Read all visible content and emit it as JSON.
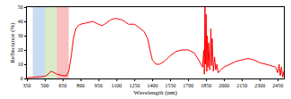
{
  "chart_data": {
    "type": "line",
    "xlabel": "Wavelength (nm)",
    "ylabel": "Reflectance (%)",
    "color": "#ff0000",
    "grid": false,
    "xlim": [
      350,
      2500
    ],
    "xticks": [
      350,
      500,
      650,
      800,
      950,
      1100,
      1250,
      1400,
      1550,
      1700,
      1850,
      2000,
      2150,
      2300,
      2450
    ],
    "ylim": [
      0,
      50
    ],
    "yticks": [
      0,
      10,
      20,
      30,
      40,
      50
    ],
    "bands": [
      {
        "range": [
          400,
          500
        ],
        "color": "#9fbfe8"
      },
      {
        "range": [
          500,
          600
        ],
        "color": "#b9d898"
      },
      {
        "range": [
          600,
          700
        ],
        "color": "#f08a8a"
      }
    ],
    "x": [
      350,
      400,
      450,
      500,
      530,
      550,
      570,
      600,
      650,
      680,
      700,
      720,
      740,
      760,
      780,
      800,
      850,
      900,
      950,
      980,
      1000,
      1050,
      1080,
      1100,
      1150,
      1200,
      1250,
      1270,
      1300,
      1330,
      1360,
      1380,
      1400,
      1430,
      1460,
      1500,
      1550,
      1600,
      1650,
      1700,
      1750,
      1780,
      1800,
      1820,
      1830,
      1835,
      1840,
      1845,
      1850,
      1855,
      1860,
      1865,
      1870,
      1880,
      1890,
      1895,
      1900,
      1910,
      1920,
      1930,
      1940,
      1950,
      1970,
      2000,
      2050,
      2100,
      2150,
      2200,
      2250,
      2300,
      2350,
      2400,
      2430,
      2450,
      2460,
      2470,
      2480,
      2490,
      2500
    ],
    "values": [
      0.5,
      0.8,
      1.0,
      1.5,
      3,
      5,
      4.5,
      3,
      2,
      1.8,
      5,
      15,
      28,
      35,
      37,
      38,
      39,
      40,
      38,
      37,
      38,
      41,
      42,
      42,
      41,
      38,
      38,
      37,
      35,
      33,
      28,
      20,
      13,
      10,
      10,
      12,
      16,
      19,
      20,
      20,
      18,
      14,
      11,
      8,
      20,
      3,
      50,
      10,
      45,
      5,
      30,
      8,
      25,
      6,
      35,
      9,
      28,
      5,
      15,
      6,
      10,
      4,
      6,
      8,
      10,
      12,
      13,
      14,
      13,
      11,
      10,
      9,
      8,
      4,
      10,
      2,
      8,
      1,
      5
    ]
  }
}
